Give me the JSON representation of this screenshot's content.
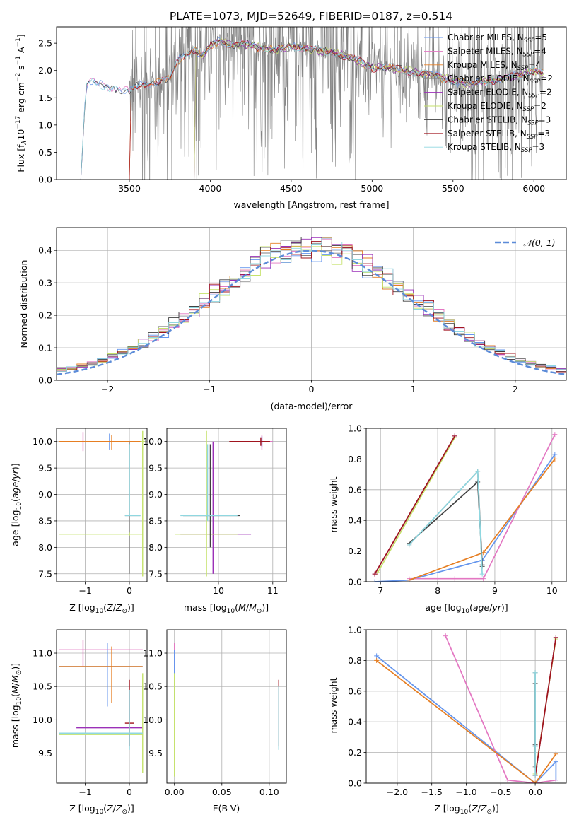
{
  "figure_title": "PLATE=1073, MJD=52649, FIBERID=0187, z=0.514",
  "series_styles": [
    {
      "name": "Chabrier MILES, N_SSP=5",
      "color": "#6495ed"
    },
    {
      "name": "Salpeter MILES, N_SSP=4",
      "color": "#e377c2"
    },
    {
      "name": "Kroupa MILES, N_SSP=4",
      "color": "#e67e22"
    },
    {
      "name": "Chabrier ELODIE, N_SSP=2",
      "color": "#7f7f7f"
    },
    {
      "name": "Salpeter ELODIE, N_SSP=2",
      "color": "#9b30b8"
    },
    {
      "name": "Kroupa ELODIE, N_SSP=2",
      "color": "#c5e26b"
    },
    {
      "name": "Chabrier STELIB, N_SSP=3",
      "color": "#404040"
    },
    {
      "name": "Salpeter STELIB, N_SSP=3",
      "color": "#a0141e"
    },
    {
      "name": "Kroupa STELIB, N_SSP=3",
      "color": "#8fd7e0"
    }
  ],
  "chart_data": [
    {
      "id": "spectrum",
      "type": "line",
      "xlabel": "wavelength [Angstrom, rest frame]",
      "xlim": [
        3050,
        6200
      ],
      "ylim": [
        0,
        2.8
      ],
      "xticks": [
        3500,
        4000,
        4500,
        5000,
        5500,
        6000
      ],
      "yticks": [
        0.0,
        0.5,
        1.0,
        1.5,
        2.0,
        2.5
      ],
      "legend_position": "top-right",
      "legend": [
        {
          "pre": "Chabrier MILES, N",
          "sub": "SSP",
          "post": "=5"
        },
        {
          "pre": "Salpeter MILES, N",
          "sub": "SSP",
          "post": "=4"
        },
        {
          "pre": "Kroupa MILES, N",
          "sub": "SSP",
          "post": "=4"
        },
        {
          "pre": "Chabrier ELODIE, N",
          "sub": "SSP",
          "post": "=2"
        },
        {
          "pre": "Salpeter ELODIE, N",
          "sub": "SSP",
          "post": "=2"
        },
        {
          "pre": "Kroupa ELODIE, N",
          "sub": "SSP",
          "post": "=2"
        },
        {
          "pre": "Chabrier STELIB, N",
          "sub": "SSP",
          "post": "=3"
        },
        {
          "pre": "Salpeter STELIB, N",
          "sub": "SSP",
          "post": "=3"
        },
        {
          "pre": "Kroupa STELIB, N",
          "sub": "SSP",
          "post": "=3"
        }
      ],
      "model_start": [
        3200,
        3200,
        3500,
        3900,
        3900,
        3900,
        3200,
        3500,
        3200
      ],
      "continuum_x": [
        3200,
        3230,
        3260,
        3300,
        3350,
        3400,
        3450,
        3500,
        3550,
        3600,
        3650,
        3700,
        3750,
        3800,
        3850,
        3900,
        3950,
        4000,
        4050,
        4100,
        4150,
        4200,
        4300,
        4400,
        4500,
        4600,
        4700,
        4800,
        4900,
        5000,
        5100,
        5200,
        5300,
        5400,
        5500,
        5600,
        5700,
        5800,
        5900,
        6000,
        6060
      ],
      "continuum_y": [
        0.0,
        1.7,
        1.78,
        1.76,
        1.7,
        1.68,
        1.65,
        1.62,
        1.7,
        1.75,
        1.78,
        1.8,
        1.85,
        2.2,
        2.3,
        2.38,
        2.25,
        2.45,
        2.55,
        2.5,
        2.45,
        2.5,
        2.42,
        2.38,
        2.45,
        2.4,
        2.35,
        2.3,
        2.2,
        2.05,
        2.05,
        2.0,
        1.95,
        1.9,
        1.8,
        1.75,
        1.8,
        1.85,
        1.9,
        2.0,
        1.95
      ],
      "data_range": [
        3500,
        6060
      ]
    },
    {
      "id": "residuals",
      "type": "histogram",
      "xlabel": "(data-model)/error",
      "ylabel": "Normed distribution",
      "xlim": [
        -2.5,
        2.5
      ],
      "ylim": [
        0,
        0.47
      ],
      "xticks": [
        -2,
        -1,
        0,
        1,
        2
      ],
      "yticks": [
        0.0,
        0.1,
        0.2,
        0.3,
        0.4
      ],
      "legend_position": "top-right",
      "legend": "N(0,1)",
      "reference": {
        "name": "N(0,1)",
        "mean": 0,
        "sigma": 1
      }
    },
    {
      "id": "age_vs_Z",
      "type": "errorbar",
      "xlabel": "Z [log10(Z/Zsun)]",
      "ylabel": "age  [log10(age/yr)]",
      "xlim": [
        -1.65,
        0.4
      ],
      "ylim": [
        7.35,
        10.25
      ],
      "xticks": [
        -1,
        0
      ],
      "yticks": [
        7.5,
        8.0,
        8.5,
        9.0,
        9.5,
        10.0
      ],
      "points": [
        {
          "s": 0,
          "x": -0.45,
          "y": 10.0,
          "xlo": -1.6,
          "xhi": 0.3,
          "ylo": 9.85,
          "yhi": 10.15
        },
        {
          "s": 1,
          "x": -1.05,
          "y": 10.0,
          "xlo": -1.6,
          "xhi": 0.3,
          "ylo": 9.82,
          "yhi": 10.18
        },
        {
          "s": 2,
          "x": -0.4,
          "y": 10.0,
          "xlo": -1.6,
          "xhi": 0.3,
          "ylo": 9.85,
          "yhi": 10.12
        },
        {
          "s": 3,
          "x": 0.0,
          "y": 8.6,
          "xlo": -0.1,
          "xhi": 0.25,
          "ylo": 7.5,
          "yhi": 10.0
        },
        {
          "s": 5,
          "x": 0.3,
          "y": 10.0,
          "xlo": 0.25,
          "xhi": 0.35,
          "ylo": 7.45,
          "yhi": 10.2
        },
        {
          "s": 5,
          "x": 0.0,
          "y": 8.25,
          "xlo": -1.6,
          "xhi": 0.3,
          "ylo": 8.22,
          "yhi": 8.28
        },
        {
          "s": 8,
          "x": 0.0,
          "y": 8.6,
          "xlo": -0.1,
          "xhi": 0.25,
          "ylo": 8.6,
          "yhi": 9.95
        }
      ]
    },
    {
      "id": "age_vs_mass",
      "type": "errorbar",
      "xlabel": "mass [log10(M/Msun)]",
      "ylabel": "",
      "xlim": [
        9.05,
        11.25
      ],
      "ylim": [
        7.35,
        10.25
      ],
      "xticks": [
        10,
        11
      ],
      "yticks": [
        7.5,
        8.0,
        8.5,
        9.0,
        9.5,
        10.0
      ],
      "points": [
        {
          "s": 0,
          "x": 10.8,
          "y": 10.0,
          "xlo": 10.3,
          "xhi": 11.0,
          "ylo": 9.9,
          "yhi": 10.1
        },
        {
          "s": 1,
          "x": 10.8,
          "y": 10.0,
          "xlo": 10.3,
          "xhi": 11.0,
          "ylo": 9.85,
          "yhi": 10.12
        },
        {
          "s": 7,
          "x": 10.78,
          "y": 10.0,
          "xlo": 10.2,
          "xhi": 10.95,
          "ylo": 9.92,
          "yhi": 10.08
        },
        {
          "s": 4,
          "x": 9.9,
          "y": 8.25,
          "xlo": 9.3,
          "xhi": 10.6,
          "ylo": 7.5,
          "yhi": 10.0
        },
        {
          "s": 5,
          "x": 9.78,
          "y": 8.25,
          "xlo": 9.2,
          "xhi": 10.35,
          "ylo": 7.45,
          "yhi": 10.2
        },
        {
          "s": 6,
          "x": 9.85,
          "y": 8.6,
          "xlo": 9.35,
          "xhi": 10.4,
          "ylo": 8.0,
          "yhi": 9.95
        },
        {
          "s": 8,
          "x": 9.8,
          "y": 8.6,
          "xlo": 9.3,
          "xhi": 10.35,
          "ylo": 8.5,
          "yhi": 9.95
        }
      ]
    },
    {
      "id": "weight_vs_age",
      "type": "line",
      "xlabel": "age  [log10(age/yr)]",
      "ylabel": "mass weight",
      "xlim": [
        6.75,
        10.25
      ],
      "ylim": [
        0,
        1.0
      ],
      "xticks": [
        7,
        8,
        9,
        10
      ],
      "yticks": [
        0.0,
        0.2,
        0.4,
        0.6,
        0.8,
        1.0
      ],
      "series": [
        {
          "s": 0,
          "x": [
            6.9,
            7.5,
            8.78,
            10.05
          ],
          "y": [
            0.0,
            0.01,
            0.14,
            0.83
          ]
        },
        {
          "s": 1,
          "x": [
            7.5,
            8.3,
            8.8,
            10.05
          ],
          "y": [
            0.02,
            0.02,
            0.02,
            0.96
          ]
        },
        {
          "s": 2,
          "x": [
            7.5,
            8.8,
            10.05
          ],
          "y": [
            0.01,
            0.19,
            0.8
          ]
        },
        {
          "s": 3,
          "x": [
            7.5,
            8.7,
            8.78
          ],
          "y": [
            0.24,
            0.72,
            0.11
          ]
        },
        {
          "s": 4,
          "x": [
            6.9,
            8.3
          ],
          "y": [
            0.05,
            0.95
          ]
        },
        {
          "s": 5,
          "x": [
            6.95,
            8.3
          ],
          "y": [
            0.06,
            0.94
          ]
        },
        {
          "s": 6,
          "x": [
            7.5,
            8.7,
            8.78
          ],
          "y": [
            0.25,
            0.65,
            0.1
          ]
        },
        {
          "s": 7,
          "x": [
            6.9,
            8.3
          ],
          "y": [
            0.05,
            0.95
          ]
        },
        {
          "s": 8,
          "x": [
            7.5,
            8.7,
            8.78
          ],
          "y": [
            0.24,
            0.72,
            0.05
          ]
        }
      ]
    },
    {
      "id": "mass_vs_Z",
      "type": "errorbar",
      "xlabel": "Z [log10(Z/Zsun)]",
      "ylabel": "mass [log10(M/Msun)]",
      "xlim": [
        -1.65,
        0.4
      ],
      "ylim": [
        9.05,
        11.35
      ],
      "xticks": [
        -1,
        0
      ],
      "yticks": [
        9.5,
        10.0,
        10.5,
        11.0
      ],
      "points": [
        {
          "s": 0,
          "x": -0.5,
          "y": 10.8,
          "xlo": -1.6,
          "xhi": 0.3,
          "ylo": 10.2,
          "yhi": 11.15
        },
        {
          "s": 1,
          "x": -1.05,
          "y": 11.05,
          "xlo": -1.6,
          "xhi": 0.3,
          "ylo": 10.8,
          "yhi": 11.2
        },
        {
          "s": 2,
          "x": -0.4,
          "y": 10.8,
          "xlo": -1.6,
          "xhi": 0.3,
          "ylo": 10.25,
          "yhi": 11.1
        },
        {
          "s": 4,
          "x": 0.0,
          "y": 9.88,
          "xlo": -1.2,
          "xhi": 0.3,
          "ylo": 9.85,
          "yhi": 9.9
        },
        {
          "s": 5,
          "x": 0.3,
          "y": 9.78,
          "xlo": -1.6,
          "xhi": 0.3,
          "ylo": 9.2,
          "yhi": 10.7
        },
        {
          "s": 7,
          "x": 0.0,
          "y": 9.95,
          "xlo": -0.1,
          "xhi": 0.1,
          "ylo": 9.6,
          "yhi": 10.6
        },
        {
          "s": 8,
          "x": 0.0,
          "y": 9.8,
          "xlo": -1.6,
          "xhi": 0.3,
          "ylo": 9.55,
          "yhi": 10.45
        }
      ]
    },
    {
      "id": "mass_vs_ebv",
      "type": "errorbar",
      "xlabel": "E(B-V)",
      "ylabel": "",
      "xlim": [
        -0.008,
        0.118
      ],
      "ylim": [
        9.05,
        11.35
      ],
      "xticks": [
        0.0,
        0.05,
        0.1
      ],
      "yticks": [
        9.5,
        10.0,
        10.5,
        11.0
      ],
      "xtick_labels": [
        "0.00",
        "0.05",
        "0.10"
      ],
      "points": [
        {
          "s": 1,
          "x": 0.0,
          "y": 11.0,
          "xlo": 0.0,
          "xhi": 0.0,
          "ylo": 10.5,
          "yhi": 11.15
        },
        {
          "s": 0,
          "x": 0.0,
          "y": 10.8,
          "xlo": 0.0,
          "xhi": 0.0,
          "ylo": 10.3,
          "yhi": 11.05
        },
        {
          "s": 5,
          "x": 0.0,
          "y": 9.8,
          "xlo": 0.0,
          "xhi": 0.0,
          "ylo": 9.15,
          "yhi": 10.7
        },
        {
          "s": 7,
          "x": 0.11,
          "y": 10.3,
          "xlo": 0.11,
          "xhi": 0.11,
          "ylo": 9.6,
          "yhi": 10.6
        },
        {
          "s": 8,
          "x": 0.11,
          "y": 10.0,
          "xlo": 0.11,
          "xhi": 0.11,
          "ylo": 9.55,
          "yhi": 10.5
        }
      ]
    },
    {
      "id": "weight_vs_Z",
      "type": "line",
      "xlabel": "Z [log10(Z/Zsun)]",
      "ylabel": "mass weight",
      "xlim": [
        -2.45,
        0.45
      ],
      "ylim": [
        0,
        1.0
      ],
      "xticks": [
        -2.0,
        -1.5,
        -1.0,
        -0.5,
        0.0
      ],
      "yticks": [
        0.0,
        0.2,
        0.4,
        0.6,
        0.8,
        1.0
      ],
      "xtick_labels": [
        "−2.0",
        "−1.5",
        "−1.0",
        "−0.5",
        "0.0"
      ],
      "series": [
        {
          "s": 0,
          "x": [
            -2.3,
            0.0,
            0.3,
            0.3
          ],
          "y": [
            0.83,
            0.0,
            0.14,
            0.02
          ]
        },
        {
          "s": 1,
          "x": [
            -1.3,
            -0.4,
            0.0,
            0.3
          ],
          "y": [
            0.96,
            0.02,
            0.0,
            0.02
          ]
        },
        {
          "s": 2,
          "x": [
            -2.3,
            0.0,
            0.3
          ],
          "y": [
            0.8,
            0.0,
            0.19
          ]
        },
        {
          "s": 3,
          "x": [
            0.0,
            0.0,
            0.0
          ],
          "y": [
            0.24,
            0.72,
            0.11
          ]
        },
        {
          "s": 4,
          "x": [
            0.0,
            0.3
          ],
          "y": [
            0.05,
            0.95
          ]
        },
        {
          "s": 5,
          "x": [
            0.0,
            0.3
          ],
          "y": [
            0.06,
            0.94
          ]
        },
        {
          "s": 6,
          "x": [
            0.0,
            0.0,
            0.0
          ],
          "y": [
            0.25,
            0.65,
            0.1
          ]
        },
        {
          "s": 7,
          "x": [
            0.0,
            0.3
          ],
          "y": [
            0.05,
            0.95
          ]
        },
        {
          "s": 8,
          "x": [
            0.0,
            0.0,
            0.0
          ],
          "y": [
            0.24,
            0.72,
            0.05
          ]
        }
      ]
    }
  ]
}
